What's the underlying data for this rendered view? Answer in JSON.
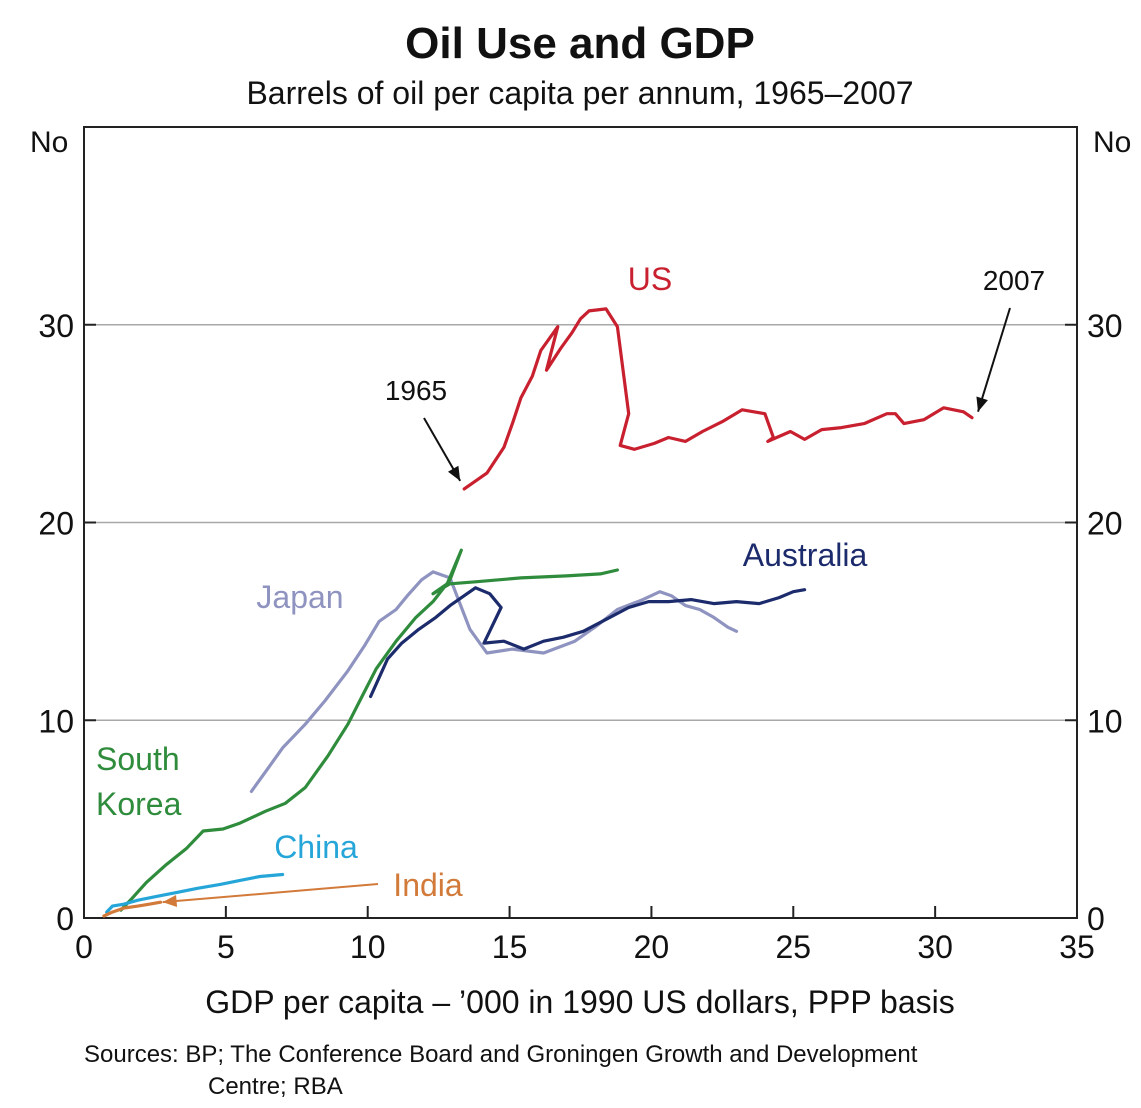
{
  "chart_data": {
    "type": "line",
    "title": "Oil Use and GDP",
    "subtitle": "Barrels of oil per capita per annum, 1965–2007",
    "xlabel": "GDP per capita – ’000 in 1990 US dollars, PPP basis",
    "ylabel_left": "No",
    "ylabel_right": "No",
    "source_line1": "Sources: BP; The Conference Board and Groningen Growth and Development",
    "source_line2": "Centre; RBA",
    "xlim": [
      0,
      35
    ],
    "ylim": [
      0,
      40
    ],
    "x_ticks": [
      "0",
      "5",
      "10",
      "15",
      "20",
      "25",
      "30",
      "35"
    ],
    "y_ticks_left": [
      "0",
      "10",
      "20",
      "30"
    ],
    "y_ticks_right": [
      "0",
      "10",
      "20",
      "30"
    ],
    "gridlines_y": [
      10,
      20,
      30
    ],
    "series": [
      {
        "name": "US",
        "color": "#c8202f",
        "points": [
          [
            13.4,
            21.7
          ],
          [
            14.2,
            22.5
          ],
          [
            14.8,
            23.8
          ],
          [
            15.1,
            25.0
          ],
          [
            15.4,
            26.3
          ],
          [
            15.8,
            27.4
          ],
          [
            16.1,
            28.7
          ],
          [
            16.7,
            29.9
          ],
          [
            16.3,
            27.7
          ],
          [
            16.8,
            28.8
          ],
          [
            17.2,
            29.6
          ],
          [
            17.5,
            30.3
          ],
          [
            17.8,
            30.7
          ],
          [
            18.4,
            30.8
          ],
          [
            18.8,
            29.9
          ],
          [
            19.2,
            25.5
          ],
          [
            18.9,
            23.9
          ],
          [
            19.4,
            23.7
          ],
          [
            20.1,
            24.0
          ],
          [
            20.6,
            24.3
          ],
          [
            21.2,
            24.1
          ],
          [
            21.8,
            24.6
          ],
          [
            22.5,
            25.1
          ],
          [
            23.2,
            25.7
          ],
          [
            24.0,
            25.5
          ],
          [
            24.3,
            24.3
          ],
          [
            24.1,
            24.1
          ],
          [
            24.9,
            24.6
          ],
          [
            25.4,
            24.2
          ],
          [
            26.0,
            24.7
          ],
          [
            26.7,
            24.8
          ],
          [
            27.5,
            25.0
          ],
          [
            28.3,
            25.5
          ],
          [
            28.6,
            25.5
          ],
          [
            28.9,
            25.0
          ],
          [
            29.6,
            25.2
          ],
          [
            30.3,
            25.8
          ],
          [
            31.0,
            25.6
          ],
          [
            31.3,
            25.3
          ]
        ]
      },
      {
        "name": "Japan",
        "color": "#8f93c0",
        "points": [
          [
            5.9,
            6.4
          ],
          [
            6.4,
            7.4
          ],
          [
            7.0,
            8.6
          ],
          [
            7.8,
            9.8
          ],
          [
            8.5,
            11.0
          ],
          [
            9.3,
            12.5
          ],
          [
            9.9,
            13.8
          ],
          [
            10.4,
            15.0
          ],
          [
            11.0,
            15.6
          ],
          [
            11.4,
            16.3
          ],
          [
            11.9,
            17.1
          ],
          [
            12.3,
            17.5
          ],
          [
            12.9,
            17.2
          ],
          [
            13.6,
            14.6
          ],
          [
            14.2,
            13.4
          ],
          [
            15.1,
            13.6
          ],
          [
            16.2,
            13.4
          ],
          [
            17.3,
            14.0
          ],
          [
            18.1,
            14.8
          ],
          [
            18.8,
            15.6
          ],
          [
            19.7,
            16.1
          ],
          [
            20.3,
            16.5
          ],
          [
            20.7,
            16.3
          ],
          [
            21.2,
            15.8
          ],
          [
            21.7,
            15.6
          ],
          [
            22.2,
            15.2
          ],
          [
            22.7,
            14.7
          ],
          [
            23.0,
            14.5
          ]
        ]
      },
      {
        "name": "South Korea",
        "color": "#2f8c3c",
        "points": [
          [
            1.3,
            0.4
          ],
          [
            1.7,
            1.0
          ],
          [
            2.2,
            1.8
          ],
          [
            2.9,
            2.7
          ],
          [
            3.6,
            3.5
          ],
          [
            4.2,
            4.4
          ],
          [
            4.9,
            4.5
          ],
          [
            5.5,
            4.8
          ],
          [
            6.4,
            5.4
          ],
          [
            7.1,
            5.8
          ],
          [
            7.8,
            6.6
          ],
          [
            8.6,
            8.2
          ],
          [
            9.3,
            9.8
          ],
          [
            9.8,
            11.2
          ],
          [
            10.3,
            12.6
          ],
          [
            11.0,
            14.0
          ],
          [
            11.7,
            15.2
          ],
          [
            12.3,
            16.0
          ],
          [
            12.9,
            17.1
          ],
          [
            13.3,
            18.6
          ],
          [
            12.8,
            16.9
          ],
          [
            12.3,
            16.4
          ],
          [
            12.9,
            16.9
          ],
          [
            13.8,
            17.0
          ],
          [
            15.4,
            17.2
          ],
          [
            17.0,
            17.3
          ],
          [
            18.2,
            17.4
          ],
          [
            18.8,
            17.6
          ]
        ]
      },
      {
        "name": "Australia",
        "color": "#1c2b6b",
        "points": [
          [
            10.1,
            11.2
          ],
          [
            10.7,
            13.1
          ],
          [
            11.2,
            13.9
          ],
          [
            11.8,
            14.6
          ],
          [
            12.4,
            15.2
          ],
          [
            12.9,
            15.8
          ],
          [
            13.4,
            16.3
          ],
          [
            13.8,
            16.7
          ],
          [
            14.3,
            16.4
          ],
          [
            14.7,
            15.7
          ],
          [
            14.1,
            13.9
          ],
          [
            14.8,
            14.0
          ],
          [
            15.5,
            13.6
          ],
          [
            16.2,
            14.0
          ],
          [
            16.9,
            14.2
          ],
          [
            17.6,
            14.5
          ],
          [
            18.4,
            15.1
          ],
          [
            19.2,
            15.7
          ],
          [
            19.9,
            16.0
          ],
          [
            20.6,
            16.0
          ],
          [
            21.4,
            16.1
          ],
          [
            22.2,
            15.9
          ],
          [
            23.0,
            16.0
          ],
          [
            23.8,
            15.9
          ],
          [
            24.5,
            16.2
          ],
          [
            25.0,
            16.5
          ],
          [
            25.4,
            16.6
          ]
        ]
      },
      {
        "name": "China",
        "color": "#26a6d8",
        "points": [
          [
            0.8,
            0.3
          ],
          [
            1.0,
            0.6
          ],
          [
            1.4,
            0.7
          ],
          [
            1.9,
            0.9
          ],
          [
            2.6,
            1.1
          ],
          [
            3.3,
            1.3
          ],
          [
            4.0,
            1.5
          ],
          [
            4.8,
            1.7
          ],
          [
            5.5,
            1.9
          ],
          [
            6.2,
            2.1
          ],
          [
            7.0,
            2.2
          ]
        ]
      },
      {
        "name": "India",
        "color": "#d27a3a",
        "points": [
          [
            0.7,
            0.1
          ],
          [
            1.0,
            0.3
          ],
          [
            1.4,
            0.5
          ],
          [
            1.9,
            0.6
          ],
          [
            2.3,
            0.7
          ],
          [
            2.7,
            0.8
          ]
        ]
      }
    ],
    "annotations": [
      {
        "text": "1965"
      },
      {
        "text": "2007"
      }
    ]
  }
}
